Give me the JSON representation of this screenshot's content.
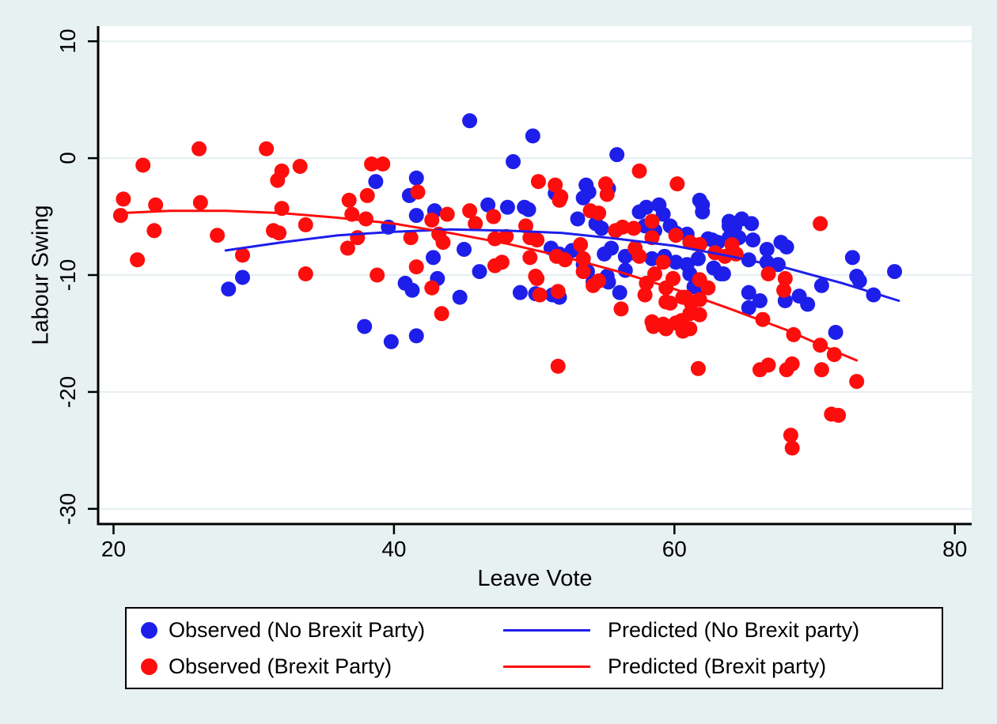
{
  "figure": {
    "background": "#e8f1f2",
    "plot_background": "#ffffff",
    "grid_color": "#e4eef0",
    "axis_color": "#000000"
  },
  "chart_data": {
    "type": "scatter",
    "title": "",
    "xlabel": "Leave Vote",
    "ylabel": "Labour Swing",
    "x_ticks": [
      20,
      40,
      60,
      80
    ],
    "y_ticks": [
      10,
      0,
      -10,
      -20,
      -30
    ],
    "xlim": [
      18.9,
      81.2
    ],
    "ylim": [
      -31.3,
      11.3
    ],
    "grid": "horizontal",
    "legend_position": "bottom",
    "series": [
      {
        "name": "Observed (No Brexit Party)",
        "kind": "scatter",
        "color": "#1e1eeb",
        "points": [
          [
            38.7,
            -2.0
          ],
          [
            39.6,
            -5.9
          ],
          [
            29.2,
            -10.2
          ],
          [
            28.2,
            -11.2
          ],
          [
            37.9,
            -14.4
          ],
          [
            39.8,
            -15.7
          ],
          [
            45.4,
            3.2
          ],
          [
            49.9,
            1.9
          ],
          [
            48.5,
            -0.3
          ],
          [
            55.9,
            0.3
          ],
          [
            41.6,
            -1.7
          ],
          [
            41.1,
            -3.2
          ],
          [
            41.6,
            -4.9
          ],
          [
            42.9,
            -4.5
          ],
          [
            46.7,
            -4.0
          ],
          [
            48.1,
            -4.2
          ],
          [
            49.6,
            -4.4
          ],
          [
            45.0,
            -7.8
          ],
          [
            42.8,
            -8.5
          ],
          [
            53.7,
            -2.3
          ],
          [
            53.5,
            -3.4
          ],
          [
            51.5,
            -3.0
          ],
          [
            46.1,
            -9.7
          ],
          [
            43.1,
            -10.3
          ],
          [
            40.8,
            -10.7
          ],
          [
            49.3,
            -4.2
          ],
          [
            53.9,
            -2.9
          ],
          [
            55.3,
            -2.6
          ],
          [
            53.1,
            -5.2
          ],
          [
            54.4,
            -5.6
          ],
          [
            54.8,
            -6.0
          ],
          [
            57.5,
            -4.6
          ],
          [
            58.0,
            -4.2
          ],
          [
            58.9,
            -4.0
          ],
          [
            59.2,
            -4.8
          ],
          [
            57.9,
            -5.8
          ],
          [
            58.6,
            -6.2
          ],
          [
            59.7,
            -5.8
          ],
          [
            60.1,
            -6.4
          ],
          [
            60.9,
            -6.5
          ],
          [
            61.8,
            -3.6
          ],
          [
            62.0,
            -4.6
          ],
          [
            62.4,
            -6.9
          ],
          [
            63.1,
            -7.2
          ],
          [
            63.9,
            -6.8
          ],
          [
            63.9,
            -5.4
          ],
          [
            64.3,
            -5.9
          ],
          [
            51.2,
            -7.7
          ],
          [
            51.8,
            -8.2
          ],
          [
            52.7,
            -7.9
          ],
          [
            55.0,
            -8.2
          ],
          [
            55.5,
            -7.7
          ],
          [
            56.5,
            -8.4
          ],
          [
            57.3,
            -8.2
          ],
          [
            58.4,
            -8.6
          ],
          [
            59.3,
            -8.4
          ],
          [
            60.1,
            -8.9
          ],
          [
            60.9,
            -9.1
          ],
          [
            61.7,
            -8.6
          ],
          [
            53.5,
            -9.1
          ],
          [
            49.0,
            -11.5
          ],
          [
            50.1,
            -11.6
          ],
          [
            51.8,
            -11.9
          ],
          [
            55.2,
            -10.1
          ],
          [
            53.8,
            -9.7
          ],
          [
            56.1,
            -11.5
          ],
          [
            56.5,
            -9.6
          ],
          [
            61.1,
            -9.9
          ],
          [
            63.3,
            -9.9
          ],
          [
            61.4,
            -11.0
          ],
          [
            41.3,
            -11.3
          ],
          [
            44.7,
            -11.9
          ],
          [
            41.6,
            -15.2
          ],
          [
            51.3,
            -11.7
          ],
          [
            54.2,
            -10.6
          ],
          [
            55.3,
            -10.6
          ],
          [
            62.0,
            -4.0
          ],
          [
            63.9,
            -5.8
          ],
          [
            64.8,
            -5.2
          ],
          [
            65.5,
            -5.6
          ],
          [
            64.6,
            -6.8
          ],
          [
            65.6,
            -7.0
          ],
          [
            62.7,
            -7.0
          ],
          [
            66.6,
            -7.8
          ],
          [
            67.6,
            -7.2
          ],
          [
            68.0,
            -7.6
          ],
          [
            65.3,
            -8.7
          ],
          [
            66.6,
            -8.9
          ],
          [
            67.4,
            -9.1
          ],
          [
            63.5,
            -9.9
          ],
          [
            62.8,
            -9.4
          ],
          [
            72.7,
            -8.5
          ],
          [
            73.0,
            -10.1
          ],
          [
            73.2,
            -10.5
          ],
          [
            75.7,
            -9.7
          ],
          [
            65.3,
            -11.5
          ],
          [
            66.1,
            -12.2
          ],
          [
            65.3,
            -12.8
          ],
          [
            67.9,
            -12.2
          ],
          [
            68.9,
            -11.8
          ],
          [
            69.5,
            -12.5
          ],
          [
            70.5,
            -10.9
          ],
          [
            74.2,
            -11.7
          ],
          [
            71.5,
            -14.9
          ],
          [
            62.0,
            -11.1
          ]
        ]
      },
      {
        "name": "Observed (Brexit Party)",
        "kind": "scatter",
        "color": "#fe0d0d",
        "points": [
          [
            26.1,
            0.8
          ],
          [
            30.9,
            0.8
          ],
          [
            22.1,
            -0.6
          ],
          [
            33.3,
            -0.7
          ],
          [
            32.0,
            -1.1
          ],
          [
            31.7,
            -1.9
          ],
          [
            38.4,
            -0.5
          ],
          [
            39.2,
            -0.5
          ],
          [
            20.7,
            -3.5
          ],
          [
            20.5,
            -4.9
          ],
          [
            23.0,
            -4.0
          ],
          [
            26.2,
            -3.8
          ],
          [
            22.9,
            -6.2
          ],
          [
            27.4,
            -6.6
          ],
          [
            32.0,
            -4.3
          ],
          [
            31.4,
            -6.2
          ],
          [
            31.8,
            -6.4
          ],
          [
            33.7,
            -5.7
          ],
          [
            36.8,
            -3.6
          ],
          [
            37.0,
            -4.8
          ],
          [
            37.4,
            -6.8
          ],
          [
            36.7,
            -7.7
          ],
          [
            38.1,
            -3.2
          ],
          [
            38.0,
            -5.2
          ],
          [
            21.7,
            -8.7
          ],
          [
            29.2,
            -8.3
          ],
          [
            33.7,
            -9.9
          ],
          [
            38.8,
            -10.0
          ],
          [
            41.7,
            -2.9
          ],
          [
            50.3,
            -2.0
          ],
          [
            51.5,
            -2.3
          ],
          [
            51.9,
            -3.3
          ],
          [
            55.1,
            -2.2
          ],
          [
            55.2,
            -3.1
          ],
          [
            57.5,
            -1.1
          ],
          [
            60.2,
            -2.2
          ],
          [
            43.8,
            -4.8
          ],
          [
            45.4,
            -4.5
          ],
          [
            45.8,
            -5.6
          ],
          [
            47.1,
            -5.0
          ],
          [
            49.4,
            -5.8
          ],
          [
            53.3,
            -7.4
          ],
          [
            54.0,
            -4.5
          ],
          [
            54.6,
            -4.7
          ],
          [
            55.8,
            -6.2
          ],
          [
            58.4,
            -6.8
          ],
          [
            59.2,
            -8.9
          ],
          [
            42.7,
            -5.3
          ],
          [
            43.2,
            -6.5
          ],
          [
            43.5,
            -7.2
          ],
          [
            41.2,
            -6.8
          ],
          [
            41.6,
            -9.3
          ],
          [
            47.2,
            -9.2
          ],
          [
            47.7,
            -8.9
          ],
          [
            49.7,
            -8.5
          ],
          [
            50.1,
            -10.1
          ],
          [
            53.5,
            -9.7
          ],
          [
            48.0,
            -6.7
          ],
          [
            47.2,
            -6.9
          ],
          [
            49.7,
            -6.8
          ],
          [
            50.2,
            -7.0
          ],
          [
            51.6,
            -8.4
          ],
          [
            52.2,
            -8.7
          ],
          [
            56.3,
            -5.9
          ],
          [
            57.1,
            -6.0
          ],
          [
            58.4,
            -5.4
          ],
          [
            60.1,
            -6.6
          ],
          [
            61.1,
            -7.2
          ],
          [
            64.1,
            -7.4
          ],
          [
            64.4,
            -8.2
          ],
          [
            57.2,
            -7.7
          ],
          [
            57.5,
            -8.4
          ],
          [
            53.5,
            -8.6
          ],
          [
            51.8,
            -3.6
          ],
          [
            50.2,
            -10.3
          ],
          [
            54.2,
            -10.9
          ],
          [
            58.0,
            -10.7
          ],
          [
            58.6,
            -9.9
          ],
          [
            59.4,
            -12.3
          ],
          [
            59.9,
            -10.3
          ],
          [
            60.6,
            -11.9
          ],
          [
            61.2,
            -12.4
          ],
          [
            61.8,
            -13.4
          ],
          [
            58.4,
            -14.0
          ],
          [
            59.2,
            -14.2
          ],
          [
            60.1,
            -14.1
          ],
          [
            60.6,
            -14.8
          ],
          [
            61.8,
            -10.4
          ],
          [
            62.4,
            -11.1
          ],
          [
            42.7,
            -11.1
          ],
          [
            43.4,
            -13.3
          ],
          [
            50.4,
            -11.7
          ],
          [
            51.7,
            -11.4
          ],
          [
            56.2,
            -12.9
          ],
          [
            51.7,
            -17.8
          ],
          [
            57.9,
            -11.7
          ],
          [
            59.4,
            -11.1
          ],
          [
            59.7,
            -12.4
          ],
          [
            60.8,
            -11.9
          ],
          [
            61.1,
            -13.3
          ],
          [
            58.5,
            -14.4
          ],
          [
            59.4,
            -14.6
          ],
          [
            60.5,
            -13.9
          ],
          [
            61.1,
            -14.6
          ],
          [
            61.7,
            -18.0
          ],
          [
            54.6,
            -10.5
          ],
          [
            70.4,
            -5.6
          ],
          [
            62.9,
            -8.1
          ],
          [
            63.6,
            -8.4
          ],
          [
            61.8,
            -7.4
          ],
          [
            66.7,
            -9.9
          ],
          [
            67.9,
            -10.3
          ],
          [
            67.8,
            -11.3
          ],
          [
            61.8,
            -12.1
          ],
          [
            66.3,
            -13.8
          ],
          [
            68.5,
            -15.1
          ],
          [
            70.4,
            -16.0
          ],
          [
            71.4,
            -16.8
          ],
          [
            66.1,
            -18.1
          ],
          [
            66.7,
            -17.7
          ],
          [
            68.0,
            -18.1
          ],
          [
            68.4,
            -17.6
          ],
          [
            70.5,
            -18.1
          ],
          [
            73.0,
            -19.1
          ],
          [
            71.2,
            -21.9
          ],
          [
            71.7,
            -22.0
          ],
          [
            68.3,
            -23.7
          ],
          [
            68.4,
            -24.8
          ]
        ]
      },
      {
        "name": "Predicted (No Brexit party)",
        "kind": "line",
        "color": "#1e1eeb",
        "points": [
          [
            28,
            -7.9
          ],
          [
            32,
            -7.2
          ],
          [
            36,
            -6.6
          ],
          [
            40,
            -6.3
          ],
          [
            44,
            -6.1
          ],
          [
            48,
            -6.2
          ],
          [
            52,
            -6.4
          ],
          [
            56,
            -6.9
          ],
          [
            60,
            -7.5
          ],
          [
            64,
            -8.4
          ],
          [
            68,
            -9.4
          ],
          [
            72,
            -10.7
          ],
          [
            76,
            -12.2
          ]
        ]
      },
      {
        "name": "Predicted (Brexit party)",
        "kind": "line",
        "color": "#fe0d0d",
        "points": [
          [
            20.5,
            -4.7
          ],
          [
            24,
            -4.5
          ],
          [
            28,
            -4.5
          ],
          [
            32,
            -4.7
          ],
          [
            36,
            -5.1
          ],
          [
            40,
            -5.6
          ],
          [
            44,
            -6.4
          ],
          [
            48,
            -7.3
          ],
          [
            52,
            -8.4
          ],
          [
            56,
            -9.7
          ],
          [
            60,
            -11.2
          ],
          [
            64,
            -12.9
          ],
          [
            68,
            -14.7
          ],
          [
            72,
            -16.8
          ],
          [
            73,
            -17.3
          ]
        ]
      }
    ]
  },
  "legend": {
    "items": [
      {
        "label": "Observed (No Brexit Party)",
        "marker": "dot",
        "color": "#1e1eeb"
      },
      {
        "label": "Observed (Brexit Party)",
        "marker": "dot",
        "color": "#fe0d0d"
      },
      {
        "label": "Predicted (No Brexit party)",
        "marker": "line",
        "color": "#1e1eeb"
      },
      {
        "label": "Predicted (Brexit party)",
        "marker": "line",
        "color": "#fe0d0d"
      }
    ]
  }
}
